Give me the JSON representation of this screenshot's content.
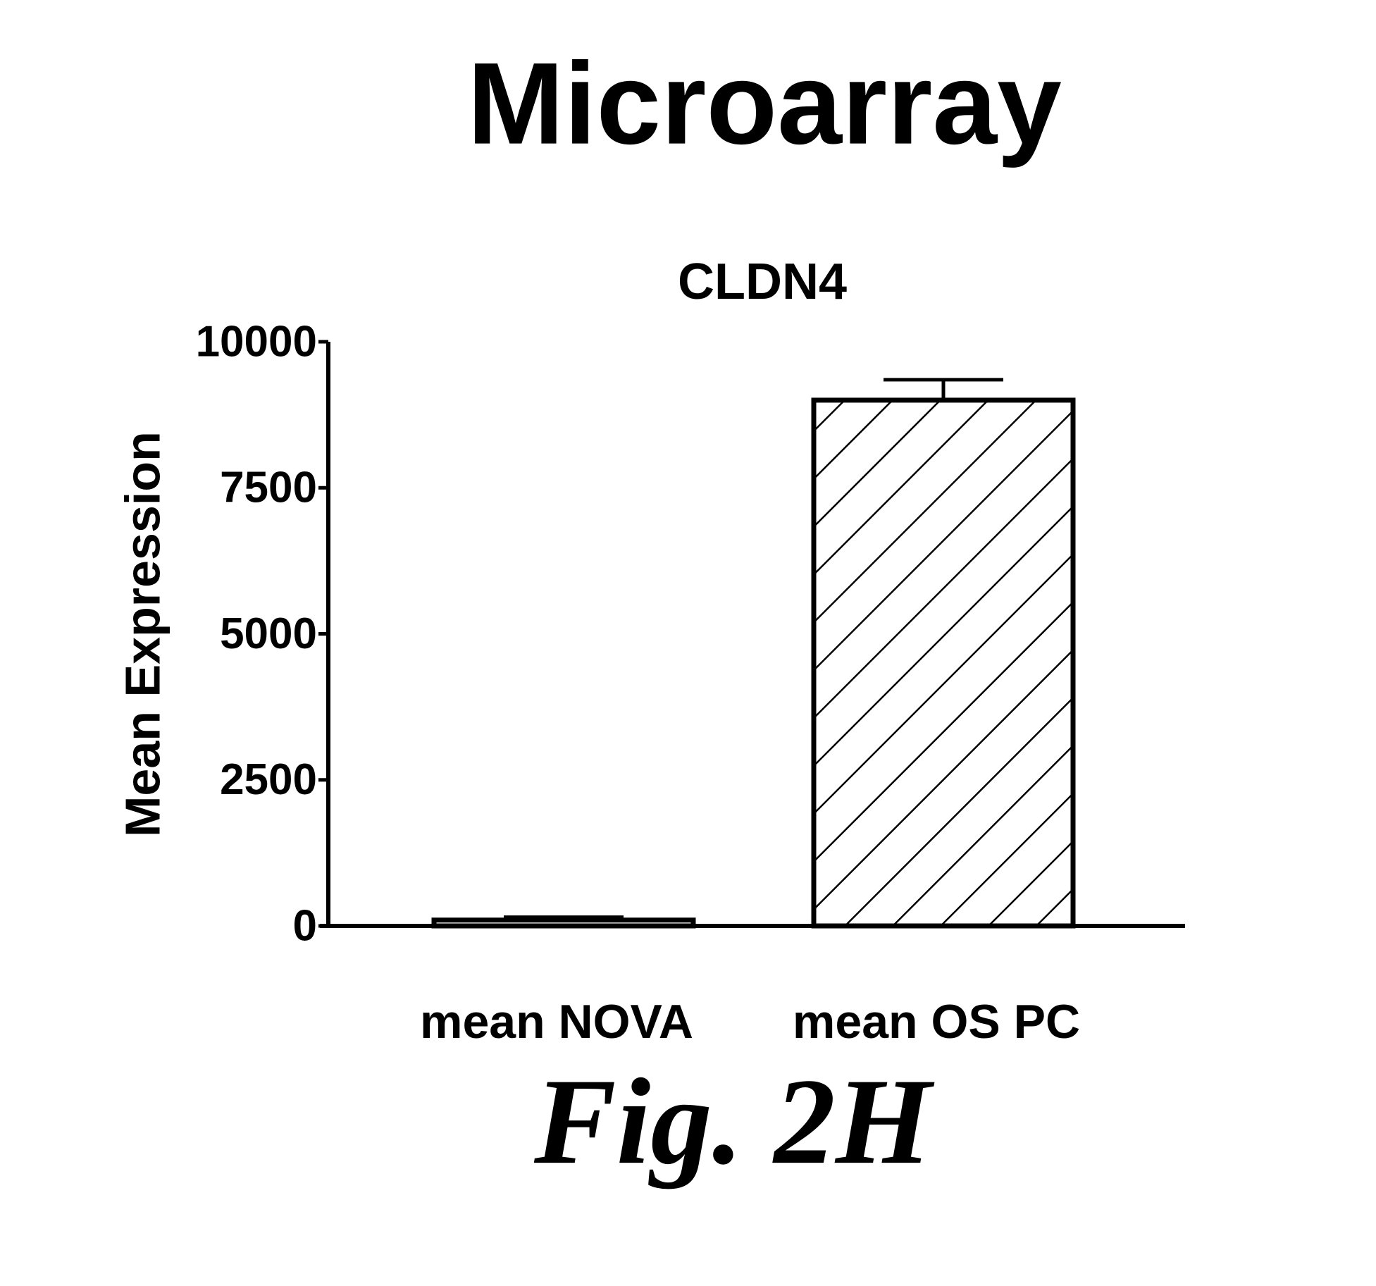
{
  "chart_data": {
    "type": "bar",
    "title": "Microarray",
    "subtitle": "CLDN4",
    "y_label": "Mean Expression",
    "categories": [
      "mean NOVA",
      "mean OS PC"
    ],
    "values": [
      100,
      9000
    ],
    "errors": [
      50,
      350
    ],
    "bar_fills": [
      "open",
      "hatched"
    ],
    "color": "#000000",
    "ylim": [
      0,
      10000
    ],
    "yticks": [
      0,
      2500,
      5000,
      7500,
      10000
    ]
  },
  "figure_label": "Fig. 2H"
}
